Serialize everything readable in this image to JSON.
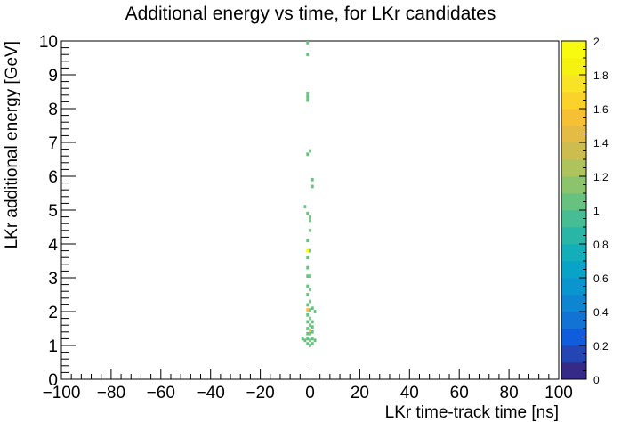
{
  "chart_data": {
    "type": "heatmap",
    "title": "Additional energy vs time, for LKr candidates",
    "xlabel": "LKr time-track time [ns]",
    "ylabel": "LKr additional energy [GeV]",
    "xlim": [
      -100,
      100
    ],
    "ylim": [
      0,
      10
    ],
    "zlim": [
      0,
      2
    ],
    "grid": false,
    "x_ticks": [
      "−100",
      "−80",
      "−60",
      "−40",
      "−20",
      "0",
      "20",
      "40",
      "60",
      "80",
      "100"
    ],
    "y_ticks": [
      "0",
      "1",
      "2",
      "3",
      "4",
      "5",
      "6",
      "7",
      "8",
      "9",
      "10"
    ],
    "z_ticks": [
      "0",
      "0.2",
      "0.4",
      "0.6",
      "0.8",
      "1",
      "1.2",
      "1.4",
      "1.6",
      "1.8",
      "2"
    ],
    "colors": {
      "palette": [
        "#352a87",
        "#2446b4",
        "#0f5cdd",
        "#1373d4",
        "#0d85d1",
        "#0b95cf",
        "#08a3c6",
        "#14aebb",
        "#2ab6a7",
        "#47bd94",
        "#67c27f",
        "#8bc46c",
        "#aec35b",
        "#cdbd4f",
        "#e4bb44",
        "#f6c034",
        "#fbd22a",
        "#f8e324",
        "#f6f20f",
        "#f9fb0e"
      ],
      "background": "#ffffff"
    },
    "points": [
      {
        "x": -1,
        "y": 9.95,
        "z": 1.0
      },
      {
        "x": -1,
        "y": 9.6,
        "z": 1.0
      },
      {
        "x": -1,
        "y": 8.45,
        "z": 1.0
      },
      {
        "x": -1,
        "y": 8.35,
        "z": 1.0
      },
      {
        "x": -1,
        "y": 8.25,
        "z": 1.0
      },
      {
        "x": 0,
        "y": 6.75,
        "z": 1.0
      },
      {
        "x": -1,
        "y": 6.65,
        "z": 1.0
      },
      {
        "x": 1,
        "y": 5.9,
        "z": 1.0
      },
      {
        "x": 1,
        "y": 5.7,
        "z": 1.0
      },
      {
        "x": -2,
        "y": 5.1,
        "z": 1.0
      },
      {
        "x": -1,
        "y": 4.9,
        "z": 1.0
      },
      {
        "x": 0,
        "y": 4.8,
        "z": 1.0
      },
      {
        "x": 0,
        "y": 4.7,
        "z": 1.0
      },
      {
        "x": 0,
        "y": 4.4,
        "z": 1.0
      },
      {
        "x": -1,
        "y": 4.1,
        "z": 1.0
      },
      {
        "x": -1,
        "y": 3.8,
        "z": 2.0
      },
      {
        "x": 0,
        "y": 3.8,
        "z": 1.0
      },
      {
        "x": -1,
        "y": 3.6,
        "z": 1.0
      },
      {
        "x": -1,
        "y": 3.3,
        "z": 1.0
      },
      {
        "x": -1,
        "y": 3.05,
        "z": 1.0
      },
      {
        "x": 0,
        "y": 3.05,
        "z": 1.0
      },
      {
        "x": -1,
        "y": 2.75,
        "z": 1.0
      },
      {
        "x": 0,
        "y": 2.65,
        "z": 1.0
      },
      {
        "x": -1,
        "y": 2.5,
        "z": 1.0
      },
      {
        "x": 0,
        "y": 2.3,
        "z": 1.0
      },
      {
        "x": -1,
        "y": 2.2,
        "z": 1.0
      },
      {
        "x": 1,
        "y": 2.1,
        "z": 1.0
      },
      {
        "x": -1,
        "y": 2.05,
        "z": 1.5
      },
      {
        "x": 0,
        "y": 2.05,
        "z": 1.0
      },
      {
        "x": 2,
        "y": 2.0,
        "z": 1.0
      },
      {
        "x": -1,
        "y": 1.9,
        "z": 1.0
      },
      {
        "x": 0,
        "y": 1.8,
        "z": 1.0
      },
      {
        "x": -1,
        "y": 1.7,
        "z": 1.0
      },
      {
        "x": 1,
        "y": 1.7,
        "z": 1.0
      },
      {
        "x": 0,
        "y": 1.6,
        "z": 1.0
      },
      {
        "x": -1,
        "y": 1.5,
        "z": 1.0
      },
      {
        "x": 1,
        "y": 1.55,
        "z": 1.0
      },
      {
        "x": 0,
        "y": 1.45,
        "z": 1.5
      },
      {
        "x": 1,
        "y": 1.4,
        "z": 1.0
      },
      {
        "x": -1,
        "y": 1.35,
        "z": 1.0
      },
      {
        "x": 0,
        "y": 1.35,
        "z": 1.0
      },
      {
        "x": -3,
        "y": 1.2,
        "z": 1.0
      },
      {
        "x": -2,
        "y": 1.15,
        "z": 1.0
      },
      {
        "x": -1,
        "y": 1.2,
        "z": 1.0
      },
      {
        "x": 0,
        "y": 1.15,
        "z": 1.0
      },
      {
        "x": 1,
        "y": 1.2,
        "z": 1.0
      },
      {
        "x": 2,
        "y": 1.15,
        "z": 1.0
      },
      {
        "x": -1,
        "y": 1.05,
        "z": 1.0
      },
      {
        "x": 0,
        "y": 1.0,
        "z": 1.0
      },
      {
        "x": 1,
        "y": 1.05,
        "z": 1.0
      }
    ]
  }
}
